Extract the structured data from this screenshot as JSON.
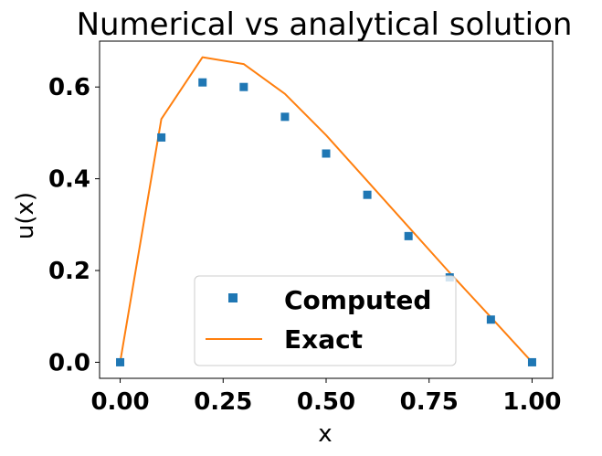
{
  "chart_data": {
    "type": "line",
    "title": "Numerical vs analytical solution",
    "xlabel": "x",
    "ylabel": "u(x)",
    "xlim": [
      -0.05,
      1.05
    ],
    "ylim": [
      -0.035,
      0.7
    ],
    "xticks": [
      0.0,
      0.25,
      0.5,
      0.75,
      1.0
    ],
    "xtick_labels": [
      "0.00",
      "0.25",
      "0.50",
      "0.75",
      "1.00"
    ],
    "yticks": [
      0.0,
      0.2,
      0.4,
      0.6
    ],
    "ytick_labels": [
      "0.0",
      "0.2",
      "0.4",
      "0.6"
    ],
    "grid": false,
    "legend_position": "lower-center",
    "series": [
      {
        "name": "Computed",
        "style": "square-markers",
        "color": "#1f77b4",
        "x": [
          0.0,
          0.1,
          0.2,
          0.3,
          0.4,
          0.5,
          0.6,
          0.7,
          0.8,
          0.9,
          1.0
        ],
        "y": [
          0.0,
          0.49,
          0.61,
          0.6,
          0.535,
          0.455,
          0.365,
          0.275,
          0.185,
          0.093,
          0.0
        ]
      },
      {
        "name": "Exact",
        "style": "line",
        "color": "#ff7f0e",
        "x": [
          0.0,
          0.1,
          0.2,
          0.3,
          0.4,
          0.5,
          0.6,
          0.7,
          0.8,
          0.9,
          1.0
        ],
        "y": [
          0.0,
          0.53,
          0.665,
          0.65,
          0.585,
          0.495,
          0.395,
          0.295,
          0.195,
          0.098,
          0.0
        ]
      }
    ]
  }
}
